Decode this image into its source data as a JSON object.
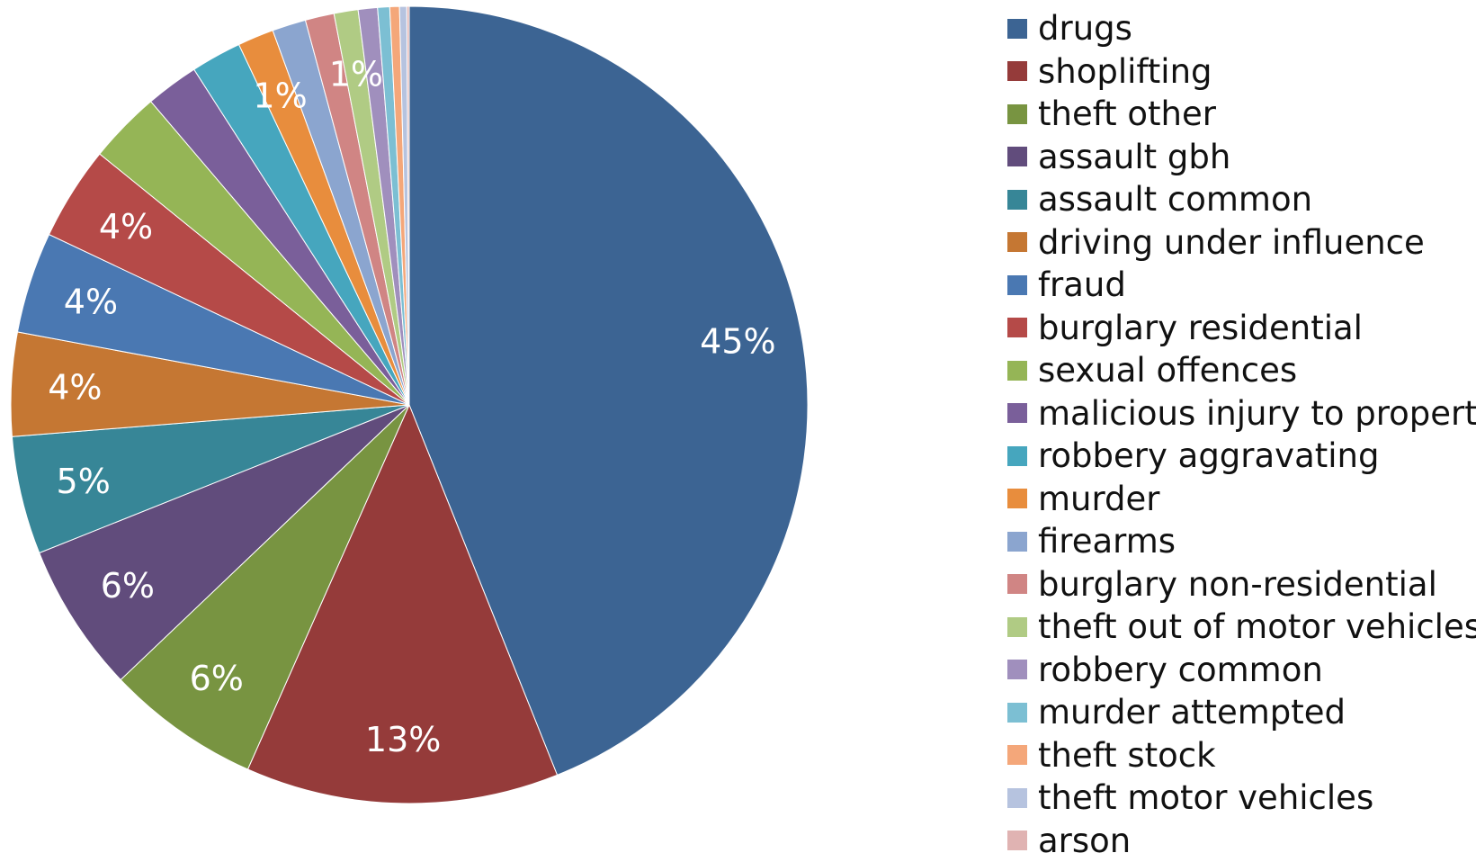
{
  "chart_data": {
    "type": "pie",
    "slices": [
      {
        "label": "drugs",
        "value": 45,
        "data_label": "45%",
        "color": "#3C6493"
      },
      {
        "label": "shoplifting",
        "value": 13,
        "data_label": "13%",
        "color": "#953B3A"
      },
      {
        "label": "theft other",
        "value": 6.4,
        "data_label": "6%",
        "color": "#789441"
      },
      {
        "label": "assault gbh",
        "value": 6.2,
        "data_label": "6%",
        "color": "#614C7C"
      },
      {
        "label": "assault common",
        "value": 4.9,
        "data_label": "5%",
        "color": "#378697"
      },
      {
        "label": "driving under influence",
        "value": 4.3,
        "data_label": "4%",
        "color": "#C57733"
      },
      {
        "label": "fraud",
        "value": 4.2,
        "data_label": "4%",
        "color": "#4A78B2"
      },
      {
        "label": "burglary residential",
        "value": 3.9,
        "data_label": "4%",
        "color": "#B54A48"
      },
      {
        "label": "sexual offences",
        "value": 3.0,
        "data_label": "",
        "color": "#95B556"
      },
      {
        "label": "malicious injury to property",
        "value": 2.2,
        "data_label": "",
        "color": "#7A5F9A"
      },
      {
        "label": "robbery aggravating",
        "value": 2.1,
        "data_label": "",
        "color": "#46A6BE"
      },
      {
        "label": "murder",
        "value": 1.5,
        "data_label": "1%",
        "color": "#E88D3D"
      },
      {
        "label": "firearms",
        "value": 1.4,
        "data_label": "",
        "color": "#8BA5CF"
      },
      {
        "label": "burglary non-residential",
        "value": 1.2,
        "data_label": "",
        "color": "#D08584"
      },
      {
        "label": "theft out of motor vehicles",
        "value": 1.0,
        "data_label": "1%",
        "color": "#B0CB84"
      },
      {
        "label": "robbery common",
        "value": 0.8,
        "data_label": "",
        "color": "#A08FBD"
      },
      {
        "label": "murder attempted",
        "value": 0.5,
        "data_label": "",
        "color": "#7CBFD3"
      },
      {
        "label": "theft stock",
        "value": 0.4,
        "data_label": "",
        "color": "#F4A77A"
      },
      {
        "label": "theft motor vehicles",
        "value": 0.3,
        "data_label": "",
        "color": "#B6C3DF"
      },
      {
        "label": "arson",
        "value": 0.1,
        "data_label": "",
        "color": "#E0B3B2"
      }
    ],
    "start_angle_deg": 0,
    "direction": "clockwise",
    "legend_position": "right",
    "data_label_color": "#ffffff"
  }
}
